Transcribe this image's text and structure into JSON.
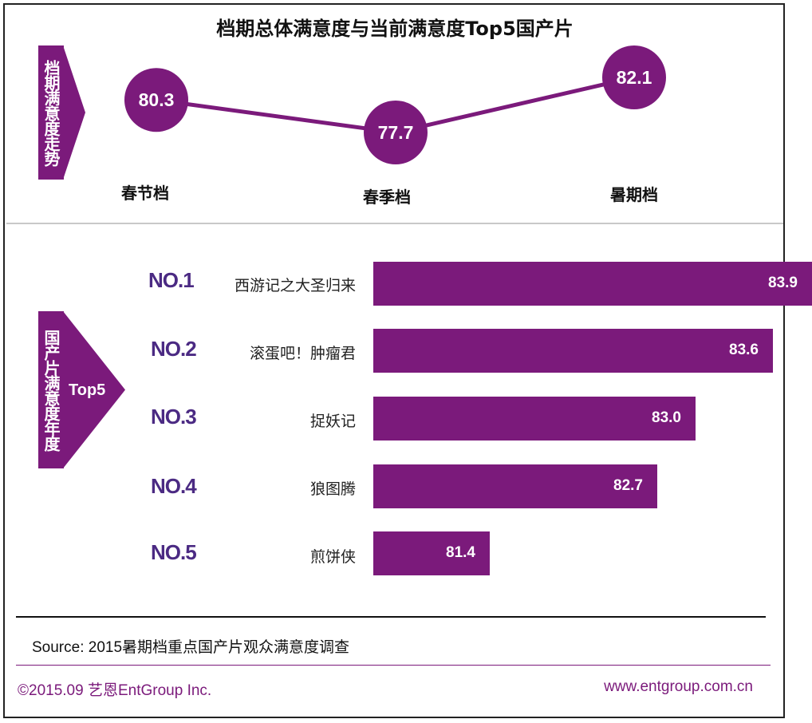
{
  "title": "档期总体满意度与当前满意度Top5国产片",
  "top_tab": "档期满意度走势",
  "bottom_tab": {
    "text": "国产片满意度年度",
    "extra": "Top5"
  },
  "colors": {
    "accent": "#7b1a7b",
    "rank": "#4b2a83",
    "line": "#7b1a7b"
  },
  "chart_data": [
    {
      "type": "line",
      "categories": [
        "春节档",
        "春季档",
        "暑期档"
      ],
      "values": [
        80.3,
        77.7,
        82.1
      ],
      "value_labels": [
        "80.3",
        "77.7",
        "82.1"
      ],
      "ylim": [
        77.7,
        82.1
      ]
    },
    {
      "type": "bar",
      "orientation": "horizontal",
      "ranks": [
        "NO.1",
        "NO.2",
        "NO.3",
        "NO.4",
        "NO.5"
      ],
      "categories": [
        "西游记之大圣归来",
        "滚蛋吧！肿瘤君",
        "捉妖记",
        "狼图腾",
        "煎饼侠"
      ],
      "values": [
        83.9,
        83.6,
        83.0,
        82.7,
        81.4
      ],
      "value_labels": [
        "83.9",
        "83.6",
        "83.0",
        "82.7",
        "81.4"
      ]
    }
  ],
  "source": "Source: 2015暑期档重点国产片观众满意度调查",
  "footer": {
    "copyright": "©2015.09  艺恩EntGroup Inc.",
    "website": "www.entgroup.com.cn"
  }
}
